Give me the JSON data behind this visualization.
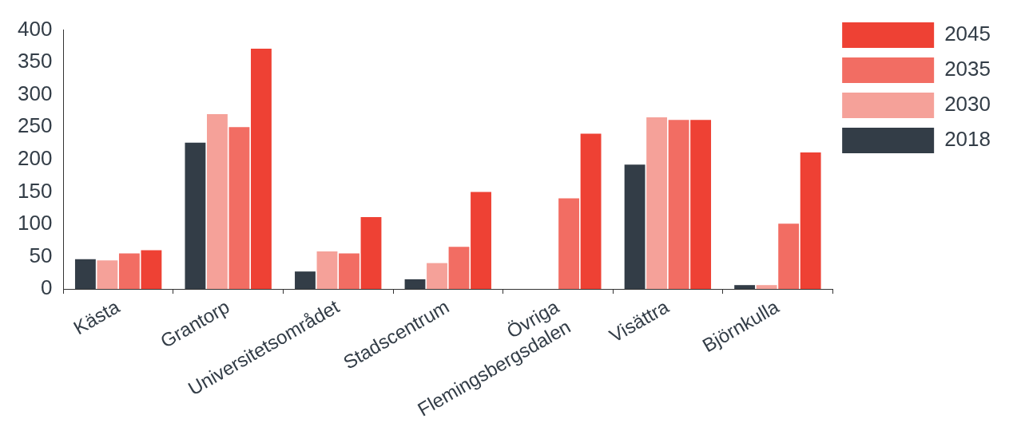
{
  "chart_data": {
    "type": "bar",
    "categories": [
      "Kästa",
      "Grantorp",
      "Universitetsområdet",
      "Stadscentrum",
      "Övriga\nFlemingsbergsdalen",
      "Visättra",
      "Björnkulla"
    ],
    "series": [
      {
        "name": "2018",
        "color": "#333d47",
        "values": [
          46,
          226,
          27,
          15,
          0,
          192,
          6
        ]
      },
      {
        "name": "2030",
        "color": "#f5a199",
        "values": [
          44,
          270,
          58,
          40,
          0,
          265,
          6
        ]
      },
      {
        "name": "2035",
        "color": "#f26d63",
        "values": [
          55,
          250,
          55,
          65,
          140,
          261,
          101
        ]
      },
      {
        "name": "2045",
        "color": "#ee4134",
        "values": [
          60,
          371,
          111,
          150,
          240,
          261,
          211
        ]
      }
    ],
    "ylim": [
      0,
      400
    ],
    "yticks": [
      0,
      50,
      100,
      150,
      200,
      250,
      300,
      350,
      400
    ],
    "grid": false,
    "legend": "top right"
  }
}
